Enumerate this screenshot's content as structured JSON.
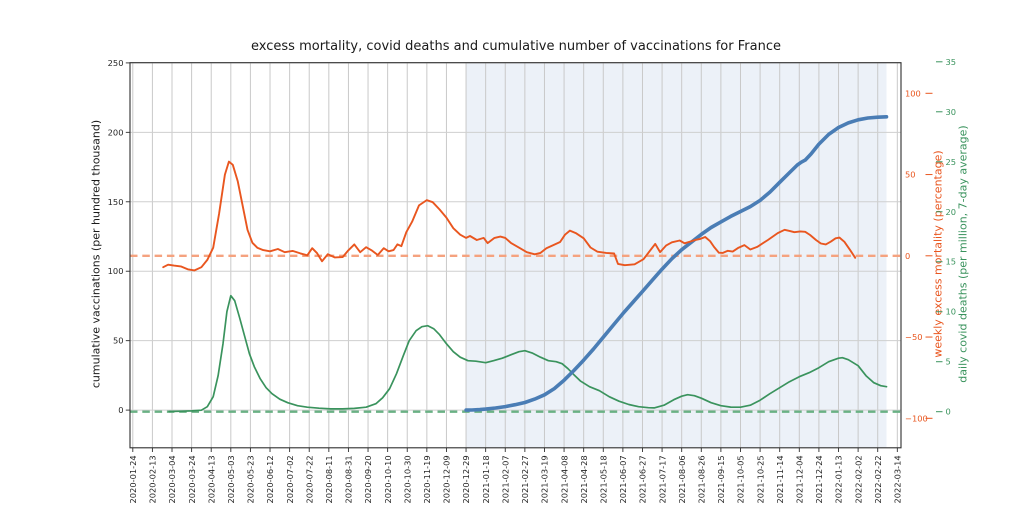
{
  "chart_data": {
    "type": "line",
    "title": "excess mortality, covid deaths and cumulative number of vaccinations for France",
    "grid": true,
    "legend": false,
    "x_axis": {
      "note": "ticks every 20 days; series x values are tick indices (0 = 2020-01-24)",
      "tick_labels": [
        "2020-01-24",
        "2020-02-13",
        "2020-03-04",
        "2020-03-24",
        "2020-04-13",
        "2020-05-03",
        "2020-05-23",
        "2020-06-12",
        "2020-07-02",
        "2020-07-22",
        "2020-08-11",
        "2020-08-31",
        "2020-09-20",
        "2020-10-10",
        "2020-10-30",
        "2020-11-19",
        "2020-12-09",
        "2020-12-29",
        "2021-01-18",
        "2021-02-07",
        "2021-02-27",
        "2021-03-19",
        "2021-04-08",
        "2021-04-28",
        "2021-05-18",
        "2021-06-07",
        "2021-06-27",
        "2021-07-17",
        "2021-08-06",
        "2021-08-26",
        "2021-09-15",
        "2021-10-05",
        "2021-10-25",
        "2021-11-14",
        "2021-12-04",
        "2021-12-24",
        "2022-01-13",
        "2022-02-02",
        "2022-02-22",
        "2022-03-14"
      ]
    },
    "axes": {
      "left": {
        "label": "cumulative vaccinations (per hundred thousand)",
        "ticks": [
          0,
          50,
          100,
          150,
          200,
          250
        ],
        "range": [
          -26.5,
          250
        ],
        "color": "#262626"
      },
      "right_mortality": {
        "label": "weekly excess mortality (percentage)",
        "ticks": [
          100,
          50,
          0,
          -50,
          -100
        ],
        "range": [
          -118,
          118.5
        ],
        "color": "#e9561f"
      },
      "right_deaths": {
        "label": "daily covid deaths (per million, 7-day average)",
        "ticks": [
          35,
          30,
          25,
          20,
          15,
          10,
          5,
          0
        ],
        "range": [
          -3.55,
          35
        ],
        "color": "#3a935d"
      }
    },
    "shaded_region": {
      "x_from": 17.0,
      "x_to": 38.45,
      "color": "#ecf1f8"
    },
    "reference_lines": [
      {
        "axis": "right_mortality",
        "value": 0,
        "style": "dashed",
        "color": "#f5a27f"
      },
      {
        "axis": "right_deaths",
        "value": 0,
        "style": "dashed",
        "color": "#69b184"
      }
    ],
    "series": [
      {
        "id": "covid-deaths",
        "name": "daily covid deaths (per million, 7-day average)",
        "axis": "right_deaths",
        "color": "#3a935d",
        "width": 1.7,
        "points": [
          [
            1.85,
            0.02
          ],
          [
            2.5,
            0.05
          ],
          [
            3.0,
            0.08
          ],
          [
            3.5,
            0.15
          ],
          [
            3.8,
            0.5
          ],
          [
            4.1,
            1.5
          ],
          [
            4.35,
            3.6
          ],
          [
            4.6,
            6.8
          ],
          [
            4.8,
            10.0
          ],
          [
            5.0,
            11.6
          ],
          [
            5.2,
            11.1
          ],
          [
            5.45,
            9.4
          ],
          [
            5.7,
            7.6
          ],
          [
            5.95,
            5.8
          ],
          [
            6.2,
            4.5
          ],
          [
            6.5,
            3.3
          ],
          [
            6.8,
            2.4
          ],
          [
            7.1,
            1.8
          ],
          [
            7.5,
            1.25
          ],
          [
            7.9,
            0.9
          ],
          [
            8.4,
            0.6
          ],
          [
            8.9,
            0.45
          ],
          [
            9.5,
            0.35
          ],
          [
            10.1,
            0.28
          ],
          [
            10.7,
            0.28
          ],
          [
            11.3,
            0.33
          ],
          [
            11.9,
            0.45
          ],
          [
            12.4,
            0.8
          ],
          [
            12.75,
            1.4
          ],
          [
            13.1,
            2.3
          ],
          [
            13.45,
            3.8
          ],
          [
            13.8,
            5.6
          ],
          [
            14.1,
            7.1
          ],
          [
            14.45,
            8.1
          ],
          [
            14.75,
            8.5
          ],
          [
            15.05,
            8.6
          ],
          [
            15.35,
            8.3
          ],
          [
            15.65,
            7.7
          ],
          [
            16.0,
            6.8
          ],
          [
            16.35,
            6.0
          ],
          [
            16.7,
            5.45
          ],
          [
            17.1,
            5.1
          ],
          [
            17.5,
            5.05
          ],
          [
            18.0,
            4.9
          ],
          [
            18.4,
            5.1
          ],
          [
            18.85,
            5.35
          ],
          [
            19.3,
            5.7
          ],
          [
            19.7,
            6.0
          ],
          [
            20.0,
            6.1
          ],
          [
            20.4,
            5.85
          ],
          [
            20.8,
            5.45
          ],
          [
            21.2,
            5.1
          ],
          [
            21.6,
            5.0
          ],
          [
            21.9,
            4.8
          ],
          [
            22.2,
            4.3
          ],
          [
            22.5,
            3.7
          ],
          [
            22.85,
            3.05
          ],
          [
            23.3,
            2.5
          ],
          [
            23.8,
            2.1
          ],
          [
            24.3,
            1.5
          ],
          [
            24.8,
            1.05
          ],
          [
            25.3,
            0.72
          ],
          [
            25.8,
            0.5
          ],
          [
            26.3,
            0.4
          ],
          [
            26.6,
            0.38
          ],
          [
            27.1,
            0.65
          ],
          [
            27.6,
            1.2
          ],
          [
            28.0,
            1.55
          ],
          [
            28.3,
            1.7
          ],
          [
            28.65,
            1.6
          ],
          [
            29.0,
            1.35
          ],
          [
            29.5,
            0.9
          ],
          [
            30.0,
            0.6
          ],
          [
            30.5,
            0.46
          ],
          [
            31.0,
            0.45
          ],
          [
            31.5,
            0.65
          ],
          [
            32.0,
            1.15
          ],
          [
            32.5,
            1.8
          ],
          [
            33.0,
            2.4
          ],
          [
            33.5,
            3.0
          ],
          [
            34.0,
            3.5
          ],
          [
            34.5,
            3.9
          ],
          [
            35.0,
            4.4
          ],
          [
            35.5,
            5.0
          ],
          [
            36.0,
            5.35
          ],
          [
            36.2,
            5.4
          ],
          [
            36.5,
            5.2
          ],
          [
            37.0,
            4.6
          ],
          [
            37.4,
            3.6
          ],
          [
            37.8,
            2.9
          ],
          [
            38.15,
            2.6
          ],
          [
            38.45,
            2.5
          ]
        ]
      },
      {
        "id": "vaccinations",
        "name": "cumulative vaccinations (per hundred thousand)",
        "axis": "left",
        "color": "#4a7db5",
        "width": 3.6,
        "points": [
          [
            17.0,
            0
          ],
          [
            17.3,
            0.05
          ],
          [
            17.7,
            0.35
          ],
          [
            18.0,
            0.7
          ],
          [
            18.5,
            1.5
          ],
          [
            19.0,
            2.5
          ],
          [
            19.5,
            3.9
          ],
          [
            20.0,
            5.5
          ],
          [
            20.5,
            7.9
          ],
          [
            21.0,
            11.0
          ],
          [
            21.5,
            15.5
          ],
          [
            22.0,
            21.5
          ],
          [
            22.5,
            28.5
          ],
          [
            23.0,
            36.0
          ],
          [
            23.5,
            44.0
          ],
          [
            24.0,
            52.5
          ],
          [
            24.5,
            61.0
          ],
          [
            25.0,
            69.5
          ],
          [
            25.5,
            77.5
          ],
          [
            26.0,
            85.5
          ],
          [
            26.5,
            93.5
          ],
          [
            27.0,
            101.5
          ],
          [
            27.5,
            109.0
          ],
          [
            28.0,
            115.5
          ],
          [
            28.5,
            121.0
          ],
          [
            29.0,
            126.5
          ],
          [
            29.5,
            131.5
          ],
          [
            30.0,
            135.5
          ],
          [
            30.5,
            139.5
          ],
          [
            31.0,
            143.0
          ],
          [
            31.5,
            146.5
          ],
          [
            32.0,
            151.0
          ],
          [
            32.5,
            157.0
          ],
          [
            33.0,
            164.0
          ],
          [
            33.5,
            171.0
          ],
          [
            33.9,
            176.5
          ],
          [
            34.1,
            178.5
          ],
          [
            34.3,
            180.0
          ],
          [
            34.6,
            184.5
          ],
          [
            35.0,
            191.5
          ],
          [
            35.5,
            198.5
          ],
          [
            36.0,
            203.5
          ],
          [
            36.5,
            206.8
          ],
          [
            37.0,
            209.0
          ],
          [
            37.5,
            210.3
          ],
          [
            38.0,
            210.9
          ],
          [
            38.45,
            211.2
          ]
        ]
      },
      {
        "id": "excess-mortality",
        "name": "weekly excess mortality (percentage)",
        "axis": "right_mortality",
        "color": "#e9561f",
        "width": 1.9,
        "points": [
          [
            1.55,
            -7
          ],
          [
            1.8,
            -5.5
          ],
          [
            2.1,
            -6
          ],
          [
            2.45,
            -6.5
          ],
          [
            2.8,
            -8.3
          ],
          [
            3.15,
            -9
          ],
          [
            3.5,
            -7
          ],
          [
            3.8,
            -2.5
          ],
          [
            4.1,
            5
          ],
          [
            4.4,
            26
          ],
          [
            4.7,
            50
          ],
          [
            4.9,
            58
          ],
          [
            5.1,
            56
          ],
          [
            5.35,
            46
          ],
          [
            5.6,
            31
          ],
          [
            5.85,
            16
          ],
          [
            6.1,
            8
          ],
          [
            6.35,
            5
          ],
          [
            6.65,
            3.5
          ],
          [
            7.0,
            2.8
          ],
          [
            7.4,
            4.2
          ],
          [
            7.75,
            2.2
          ],
          [
            8.15,
            3
          ],
          [
            8.55,
            1.5
          ],
          [
            8.9,
            0.3
          ],
          [
            9.15,
            4.7
          ],
          [
            9.4,
            1.6
          ],
          [
            9.65,
            -3.4
          ],
          [
            9.95,
            1
          ],
          [
            10.3,
            -1
          ],
          [
            10.7,
            -0.8
          ],
          [
            11.0,
            3.4
          ],
          [
            11.3,
            7
          ],
          [
            11.6,
            2.2
          ],
          [
            11.9,
            5.3
          ],
          [
            12.2,
            3.2
          ],
          [
            12.5,
            0.5
          ],
          [
            12.8,
            4.7
          ],
          [
            13.05,
            2.8
          ],
          [
            13.3,
            3.5
          ],
          [
            13.5,
            7
          ],
          [
            13.7,
            6
          ],
          [
            13.95,
            14.5
          ],
          [
            14.25,
            21
          ],
          [
            14.6,
            31
          ],
          [
            15.0,
            34.3
          ],
          [
            15.3,
            33
          ],
          [
            15.65,
            28.5
          ],
          [
            16.0,
            23.5
          ],
          [
            16.35,
            17
          ],
          [
            16.7,
            13
          ],
          [
            17.0,
            11
          ],
          [
            17.2,
            12.2
          ],
          [
            17.55,
            9.7
          ],
          [
            17.9,
            11
          ],
          [
            18.1,
            7.8
          ],
          [
            18.45,
            11
          ],
          [
            18.75,
            11.8
          ],
          [
            19.0,
            11
          ],
          [
            19.3,
            7.8
          ],
          [
            19.75,
            4.7
          ],
          [
            20.1,
            2.2
          ],
          [
            20.5,
            0.9
          ],
          [
            20.8,
            1.8
          ],
          [
            21.1,
            4.7
          ],
          [
            21.45,
            6.6
          ],
          [
            21.8,
            8.5
          ],
          [
            22.05,
            13
          ],
          [
            22.3,
            15.5
          ],
          [
            22.6,
            14
          ],
          [
            23.0,
            10.8
          ],
          [
            23.35,
            5.1
          ],
          [
            23.7,
            2.5
          ],
          [
            24.15,
            1.8
          ],
          [
            24.55,
            1.4
          ],
          [
            24.75,
            -5
          ],
          [
            25.1,
            -5.8
          ],
          [
            25.6,
            -5.2
          ],
          [
            26.05,
            -2.1
          ],
          [
            26.45,
            4.2
          ],
          [
            26.65,
            7.3
          ],
          [
            26.9,
            2.3
          ],
          [
            27.2,
            6.3
          ],
          [
            27.5,
            8.3
          ],
          [
            27.9,
            9.4
          ],
          [
            28.15,
            7.7
          ],
          [
            28.45,
            8.8
          ],
          [
            28.7,
            9.8
          ],
          [
            28.95,
            10.4
          ],
          [
            29.2,
            11.6
          ],
          [
            29.45,
            9
          ],
          [
            29.65,
            5.5
          ],
          [
            29.9,
            1.9
          ],
          [
            30.1,
            1.8
          ],
          [
            30.35,
            3.1
          ],
          [
            30.6,
            2.6
          ],
          [
            30.9,
            5
          ],
          [
            31.2,
            6.6
          ],
          [
            31.5,
            3.9
          ],
          [
            31.85,
            5.5
          ],
          [
            32.4,
            9.7
          ],
          [
            32.9,
            14
          ],
          [
            33.25,
            16
          ],
          [
            33.5,
            15.3
          ],
          [
            33.75,
            14.5
          ],
          [
            34.05,
            15
          ],
          [
            34.3,
            14.8
          ],
          [
            34.55,
            12.8
          ],
          [
            34.85,
            9.7
          ],
          [
            35.1,
            7.6
          ],
          [
            35.35,
            7
          ],
          [
            35.6,
            8.7
          ],
          [
            35.85,
            10.8
          ],
          [
            36.05,
            11.2
          ],
          [
            36.3,
            8.6
          ],
          [
            36.6,
            3.4
          ],
          [
            36.85,
            -1.2
          ]
        ]
      }
    ]
  }
}
